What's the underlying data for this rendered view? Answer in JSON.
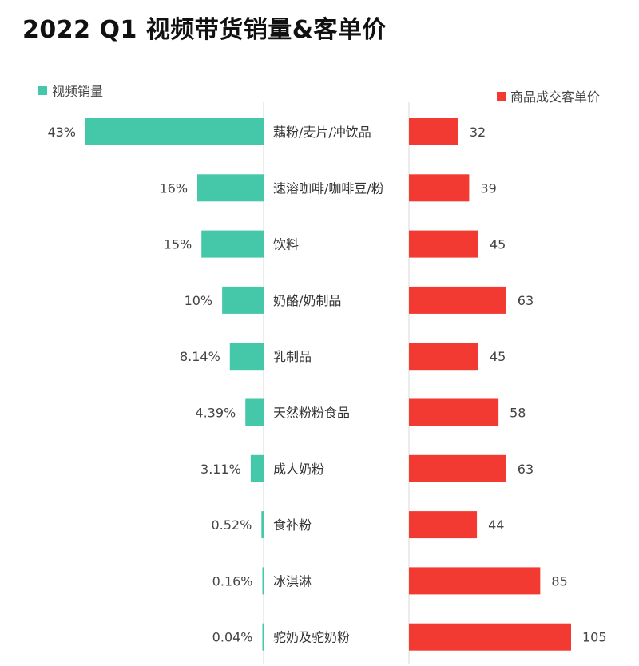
{
  "colors": {
    "left": "#45c7aa",
    "right": "#f23a33",
    "axis": "#d9d9d9"
  },
  "chart_data": {
    "type": "bar",
    "title": "2022 Q1 视频带货销量&客单价",
    "legend_left": "视频销量",
    "legend_right": "商品成交客单价",
    "categories": [
      "藕粉/麦片/冲饮品",
      "速溶咖啡/咖啡豆/粉",
      "饮料",
      "奶酪/奶制品",
      "乳制品",
      "天然粉粉食品",
      "成人奶粉",
      "食补粉",
      "冰淇淋",
      "驼奶及驼奶粉"
    ],
    "series": [
      {
        "name": "视频销量",
        "values": [
          43,
          16,
          15,
          10,
          8.14,
          4.39,
          3.11,
          0.52,
          0.16,
          0.04
        ],
        "labels": [
          "43%",
          "16%",
          "15%",
          "10%",
          "8.14%",
          "4.39%",
          "3.11%",
          "0.52%",
          "0.16%",
          "0.04%"
        ]
      },
      {
        "name": "商品成交客单价",
        "values": [
          32,
          39,
          45,
          63,
          45,
          58,
          63,
          44,
          85,
          105
        ],
        "labels": [
          "32",
          "39",
          "45",
          "63",
          "45",
          "58",
          "63",
          "44",
          "85",
          "105"
        ]
      }
    ]
  }
}
